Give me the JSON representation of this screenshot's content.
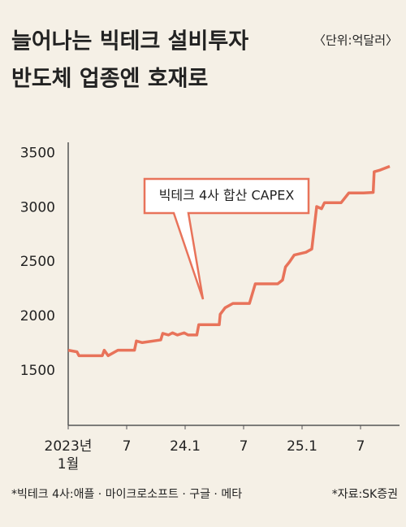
{
  "chart_data": {
    "type": "line",
    "title": "늘어나는 빅테크 설비투자",
    "subtitle": "반도체 업종엔 호재로",
    "unit_note": "〈단위:억달러〉",
    "annotation": "빅테크 4사 합산 CAPEX",
    "footnote": "*빅테크 4사:애플 · 마이크로소프트 · 구글 · 메타",
    "source": "*자료:SK증권",
    "xlim": [
      0,
      34
    ],
    "xticks": [
      {
        "value": 0,
        "label": "2023년\n1월"
      },
      {
        "value": 6,
        "label": "7"
      },
      {
        "value": 12,
        "label": "24.1"
      },
      {
        "value": 18,
        "label": "7"
      },
      {
        "value": 24,
        "label": "25.1"
      },
      {
        "value": 30,
        "label": "7"
      }
    ],
    "ylim": [
      1000,
      3600
    ],
    "yticks": [
      1500,
      2000,
      2500,
      3000,
      3500
    ],
    "grid": false,
    "series": [
      {
        "name": "빅테크 4사 합산 CAPEX",
        "color": "#e8735a",
        "x": [
          0,
          0.9,
          1.1,
          3.5,
          3.7,
          4.1,
          5.1,
          6.8,
          7.0,
          7.6,
          9.5,
          9.7,
          10.3,
          10.7,
          11.2,
          11.9,
          12.3,
          13.2,
          13.4,
          15.5,
          15.6,
          16.1,
          16.9,
          18.6,
          19.2,
          21.5,
          22.0,
          22.3,
          22.7,
          23.2,
          24.4,
          25.0,
          25.5,
          26.0,
          26.3,
          28.0,
          28.8,
          30.3,
          31.3,
          31.4,
          32.0,
          33.0
        ],
        "values": [
          1690,
          1675,
          1640,
          1640,
          1690,
          1640,
          1690,
          1690,
          1775,
          1760,
          1785,
          1845,
          1830,
          1850,
          1830,
          1850,
          1830,
          1830,
          1925,
          1925,
          2020,
          2080,
          2120,
          2120,
          2300,
          2300,
          2335,
          2455,
          2500,
          2565,
          2590,
          2620,
          3010,
          2990,
          3045,
          3045,
          3135,
          3135,
          3140,
          3330,
          3345,
          3380
        ]
      }
    ]
  }
}
